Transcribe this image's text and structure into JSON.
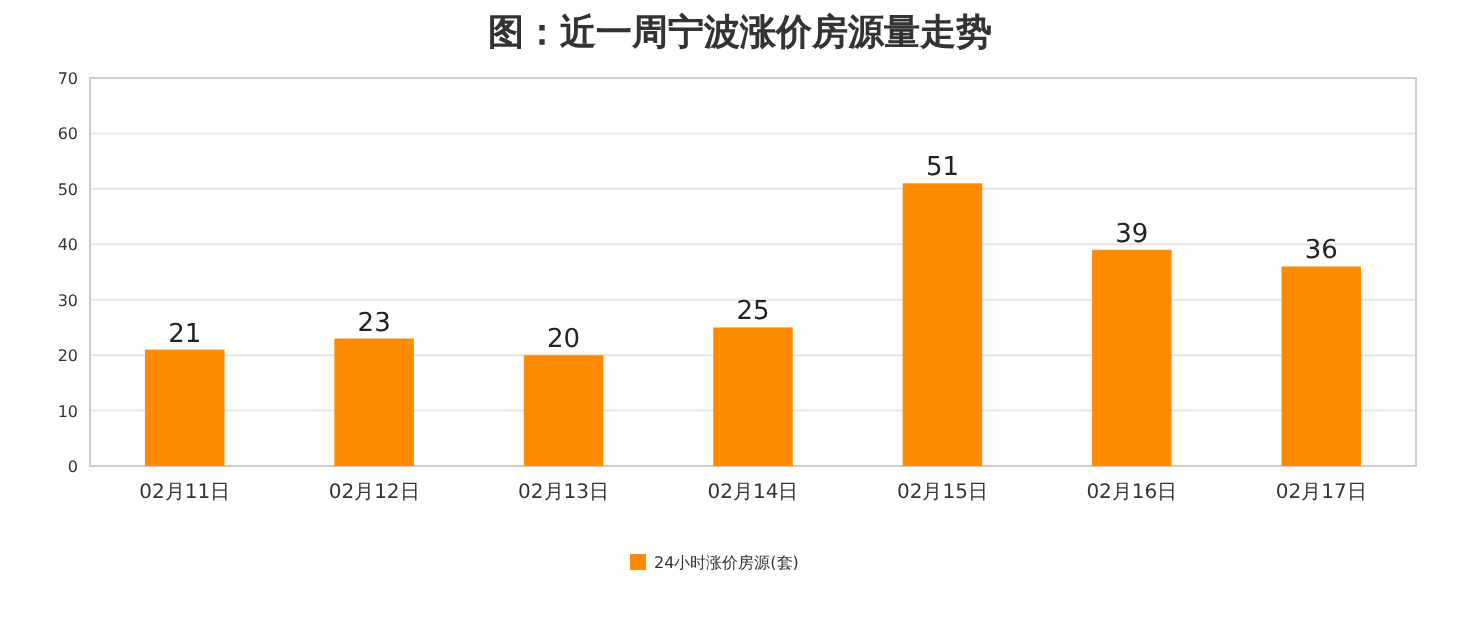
{
  "chart_data": {
    "type": "bar",
    "title": "图：近一周宁波涨价房源量走势",
    "categories": [
      "02月11日",
      "02月12日",
      "02月13日",
      "02月14日",
      "02月15日",
      "02月16日",
      "02月17日"
    ],
    "series": [
      {
        "name": "24小时涨价房源(套)",
        "color": "#ff8c00",
        "values": [
          21,
          23,
          20,
          25,
          51,
          39,
          36
        ]
      }
    ],
    "ylim": [
      0,
      70
    ],
    "yticks": [
      0,
      10,
      20,
      30,
      40,
      50,
      60,
      70
    ],
    "data_labels": true,
    "grid": "y",
    "legend": "bottom"
  }
}
